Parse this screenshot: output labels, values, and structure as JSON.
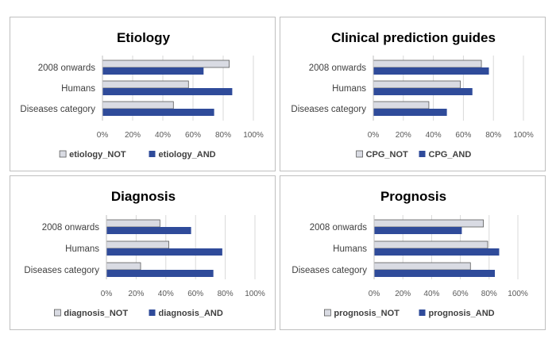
{
  "colors": {
    "not": "#d9dbe3",
    "and": "#2f4b9a",
    "grid": "#d9d9d9",
    "axis": "#bfbfbf"
  },
  "chart_data": [
    {
      "type": "bar",
      "orientation": "horizontal",
      "title": "Etiology",
      "categories": [
        "2008 onwards",
        "Humans",
        "Diseases category"
      ],
      "xlim": [
        0,
        100
      ],
      "xticks": [
        "0%",
        "20%",
        "40%",
        "60%",
        "80%",
        "100%"
      ],
      "grid": true,
      "legend": "bottom",
      "series": [
        {
          "name": "etiology_NOT",
          "values": [
            84,
            57,
            47
          ]
        },
        {
          "name": "etiology_AND",
          "values": [
            67,
            86,
            74
          ]
        }
      ]
    },
    {
      "type": "bar",
      "orientation": "horizontal",
      "title": "Clinical prediction guides",
      "categories": [
        "2008 onwards",
        "Humans",
        "Diseases category"
      ],
      "xlim": [
        0,
        100
      ],
      "xticks": [
        "0%",
        "20%",
        "40%",
        "60%",
        "80%",
        "100%"
      ],
      "grid": true,
      "legend": "bottom",
      "series": [
        {
          "name": "CPG_NOT",
          "values": [
            72,
            58,
            37
          ]
        },
        {
          "name": "CPG_AND",
          "values": [
            77,
            66,
            49
          ]
        }
      ]
    },
    {
      "type": "bar",
      "orientation": "horizontal",
      "title": "Diagnosis",
      "categories": [
        "2008 onwards",
        "Humans",
        "Diseases category"
      ],
      "xlim": [
        0,
        100
      ],
      "xticks": [
        "0%",
        "20%",
        "40%",
        "60%",
        "80%",
        "100%"
      ],
      "grid": true,
      "legend": "bottom",
      "series": [
        {
          "name": "diagnosis_NOT",
          "values": [
            36,
            42,
            23
          ]
        },
        {
          "name": "diagnosis_AND",
          "values": [
            57,
            78,
            72
          ]
        }
      ]
    },
    {
      "type": "bar",
      "orientation": "horizontal",
      "title": "Prognosis",
      "categories": [
        "2008 onwards",
        "Humans",
        "Diseases category"
      ],
      "xlim": [
        0,
        100
      ],
      "xticks": [
        "0%",
        "20%",
        "40%",
        "60%",
        "80%",
        "100%"
      ],
      "grid": true,
      "legend": "bottom",
      "series": [
        {
          "name": "prognosis_NOT",
          "values": [
            76,
            79,
            67
          ]
        },
        {
          "name": "prognosis_AND",
          "values": [
            61,
            87,
            84
          ]
        }
      ]
    }
  ]
}
